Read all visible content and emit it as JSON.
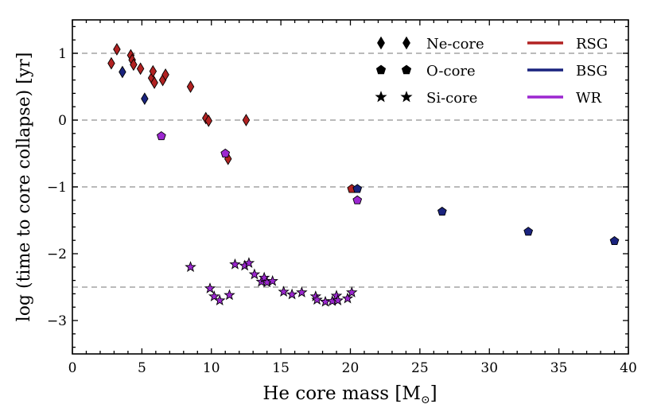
{
  "chart_data": {
    "type": "scatter",
    "title": "",
    "xlabel": "He core mass [M",
    "xlabel_sub": "⊙",
    "xlabel_end": "]",
    "ylabel": "log (time to core collapse) [yr]",
    "xlim": [
      0,
      40
    ],
    "ylim": [
      -3.5,
      1.5
    ],
    "xticks": [
      0,
      5,
      10,
      15,
      20,
      25,
      30,
      35,
      40
    ],
    "yticks": [
      -3,
      -2,
      -1,
      0,
      1
    ],
    "xtick_labels": [
      "0",
      "5",
      "10",
      "15",
      "20",
      "25",
      "30",
      "35",
      "40"
    ],
    "ytick_labels": [
      "−3",
      "−2",
      "−1",
      "0",
      "1"
    ],
    "reference_lines_y": [
      1,
      0,
      -1,
      -2.5
    ],
    "colors": {
      "RSG": "#b22222",
      "BSG": "#1a237e",
      "WR": "#9c27d0",
      "gridline": "#b0b0b0"
    },
    "legend_markers": [
      {
        "label": "Ne-core",
        "marker": "diamond"
      },
      {
        "label": "O-core",
        "marker": "pentagon"
      },
      {
        "label": "Si-core",
        "marker": "star"
      }
    ],
    "legend_lines": [
      {
        "label": "RSG",
        "phase": "RSG"
      },
      {
        "label": "BSG",
        "phase": "BSG"
      },
      {
        "label": "WR",
        "phase": "WR"
      }
    ],
    "series": [
      {
        "name": "Ne-core",
        "marker": "diamond",
        "points": [
          {
            "x": 2.8,
            "y": 0.85,
            "phase": "RSG"
          },
          {
            "x": 3.2,
            "y": 1.06,
            "phase": "RSG"
          },
          {
            "x": 3.6,
            "y": 0.72,
            "phase": "BSG"
          },
          {
            "x": 4.2,
            "y": 0.97,
            "phase": "RSG"
          },
          {
            "x": 4.3,
            "y": 0.9,
            "phase": "RSG"
          },
          {
            "x": 4.4,
            "y": 0.83,
            "phase": "RSG"
          },
          {
            "x": 4.9,
            "y": 0.77,
            "phase": "RSG"
          },
          {
            "x": 5.2,
            "y": 0.32,
            "phase": "BSG"
          },
          {
            "x": 5.7,
            "y": 0.63,
            "phase": "RSG"
          },
          {
            "x": 5.8,
            "y": 0.73,
            "phase": "RSG"
          },
          {
            "x": 5.9,
            "y": 0.56,
            "phase": "RSG"
          },
          {
            "x": 6.5,
            "y": 0.6,
            "phase": "RSG"
          },
          {
            "x": 6.7,
            "y": 0.68,
            "phase": "RSG"
          },
          {
            "x": 8.5,
            "y": 0.5,
            "phase": "RSG"
          },
          {
            "x": 9.6,
            "y": 0.03,
            "phase": "RSG"
          },
          {
            "x": 9.8,
            "y": -0.01,
            "phase": "RSG"
          },
          {
            "x": 11.2,
            "y": -0.58,
            "phase": "RSG"
          },
          {
            "x": 12.5,
            "y": 0.0,
            "phase": "RSG"
          }
        ]
      },
      {
        "name": "O-core",
        "marker": "pentagon",
        "points": [
          {
            "x": 6.4,
            "y": -0.24,
            "phase": "WR"
          },
          {
            "x": 11.0,
            "y": -0.5,
            "phase": "WR"
          },
          {
            "x": 20.1,
            "y": -1.03,
            "phase": "RSG"
          },
          {
            "x": 20.5,
            "y": -1.03,
            "phase": "BSG"
          },
          {
            "x": 20.5,
            "y": -1.2,
            "phase": "WR"
          },
          {
            "x": 26.6,
            "y": -1.37,
            "phase": "BSG"
          },
          {
            "x": 32.8,
            "y": -1.67,
            "phase": "BSG"
          },
          {
            "x": 39.0,
            "y": -1.81,
            "phase": "BSG"
          }
        ]
      },
      {
        "name": "Si-core",
        "marker": "star",
        "points": [
          {
            "x": 8.5,
            "y": -2.2,
            "phase": "WR"
          },
          {
            "x": 9.9,
            "y": -2.52,
            "phase": "WR"
          },
          {
            "x": 10.2,
            "y": -2.64,
            "phase": "WR"
          },
          {
            "x": 10.6,
            "y": -2.7,
            "phase": "WR"
          },
          {
            "x": 11.3,
            "y": -2.62,
            "phase": "WR"
          },
          {
            "x": 11.7,
            "y": -2.16,
            "phase": "WR"
          },
          {
            "x": 12.4,
            "y": -2.18,
            "phase": "WR"
          },
          {
            "x": 12.7,
            "y": -2.14,
            "phase": "WR"
          },
          {
            "x": 13.1,
            "y": -2.31,
            "phase": "WR"
          },
          {
            "x": 13.6,
            "y": -2.42,
            "phase": "WR"
          },
          {
            "x": 13.8,
            "y": -2.36,
            "phase": "WR"
          },
          {
            "x": 14.0,
            "y": -2.43,
            "phase": "WR"
          },
          {
            "x": 14.4,
            "y": -2.41,
            "phase": "WR"
          },
          {
            "x": 15.2,
            "y": -2.57,
            "phase": "WR"
          },
          {
            "x": 15.8,
            "y": -2.61,
            "phase": "WR"
          },
          {
            "x": 16.5,
            "y": -2.58,
            "phase": "WR"
          },
          {
            "x": 17.5,
            "y": -2.64,
            "phase": "WR"
          },
          {
            "x": 17.6,
            "y": -2.69,
            "phase": "WR"
          },
          {
            "x": 18.2,
            "y": -2.72,
            "phase": "WR"
          },
          {
            "x": 18.7,
            "y": -2.71,
            "phase": "WR"
          },
          {
            "x": 19.0,
            "y": -2.63,
            "phase": "WR"
          },
          {
            "x": 19.1,
            "y": -2.7,
            "phase": "WR"
          },
          {
            "x": 19.8,
            "y": -2.67,
            "phase": "WR"
          },
          {
            "x": 20.1,
            "y": -2.58,
            "phase": "WR"
          }
        ]
      }
    ]
  }
}
